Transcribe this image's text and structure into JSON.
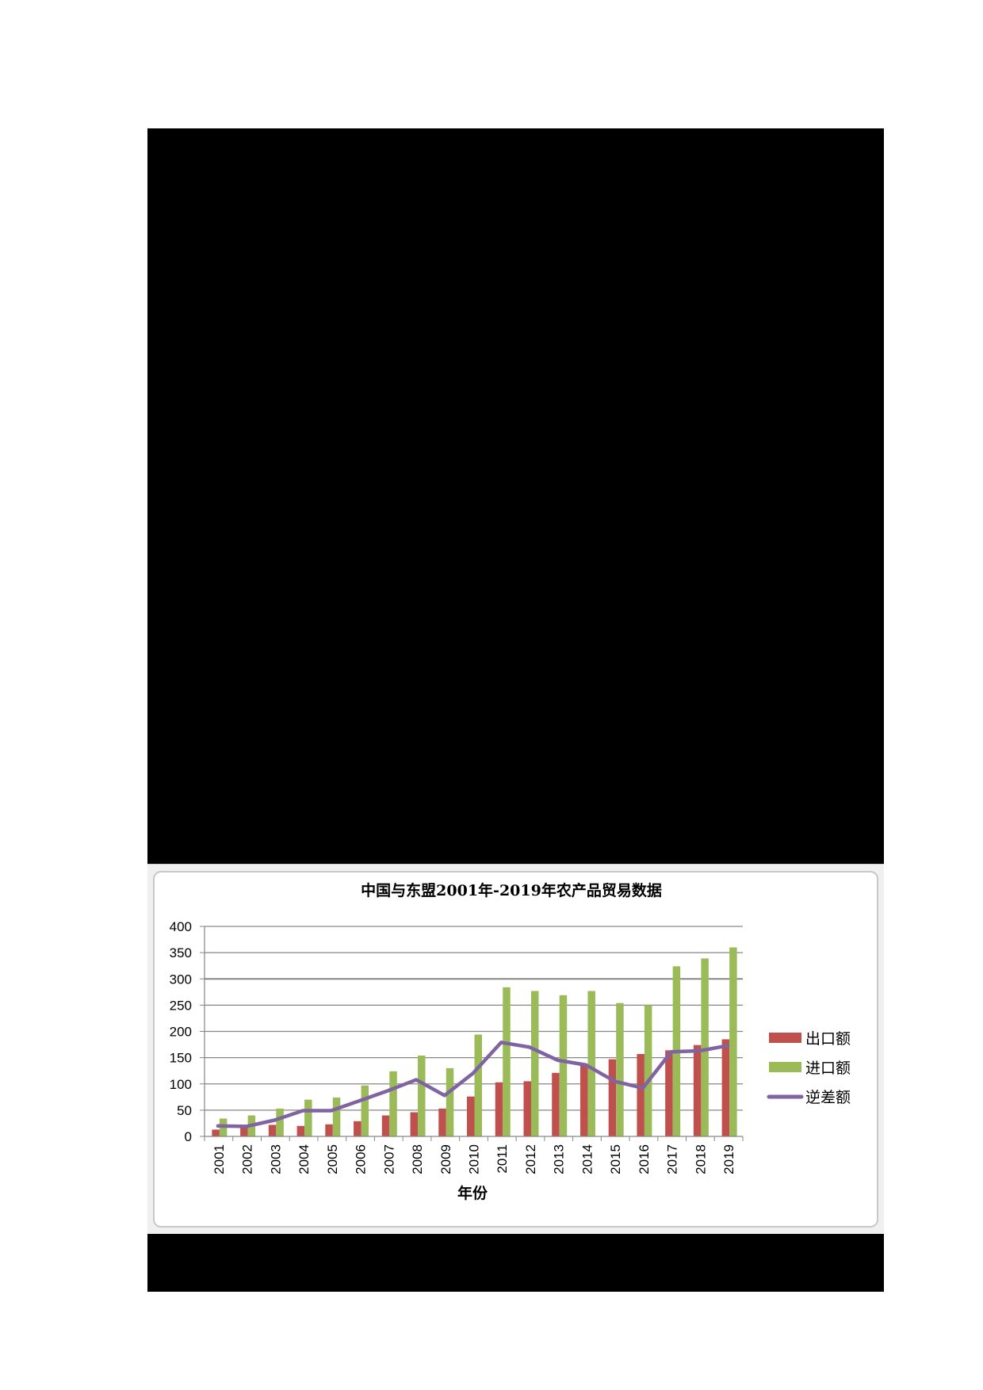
{
  "page": {
    "background": "#ffffff",
    "redacted_blocks": 2
  },
  "chart_data": {
    "type": "bar",
    "title": "中国与东盟2001年-2019年农产品贸易数据",
    "xlabel": "年份",
    "ylabel": "",
    "ylim": [
      0,
      400
    ],
    "yticks": [
      0,
      50,
      100,
      150,
      200,
      250,
      300,
      350,
      400
    ],
    "grid": true,
    "legend_position": "right",
    "categories": [
      "2001",
      "2002",
      "2003",
      "2004",
      "2005",
      "2006",
      "2007",
      "2008",
      "2009",
      "2010",
      "2011",
      "2012",
      "2013",
      "2014",
      "2015",
      "2016",
      "2017",
      "2018",
      "2019"
    ],
    "series": [
      {
        "name": "出口额",
        "type": "bar",
        "color": "#c0504d",
        "values": [
          13,
          20,
          22,
          20,
          23,
          29,
          40,
          46,
          53,
          76,
          103,
          105,
          121,
          136,
          147,
          157,
          164,
          174,
          185
        ]
      },
      {
        "name": "进口额",
        "type": "bar",
        "color": "#9bbb59",
        "values": [
          34,
          40,
          53,
          70,
          74,
          97,
          124,
          154,
          130,
          194,
          284,
          277,
          269,
          277,
          254,
          250,
          324,
          339,
          360
        ]
      },
      {
        "name": "逆差额",
        "type": "line",
        "color": "#8064a2",
        "values": [
          20,
          19,
          31,
          49,
          49,
          68,
          87,
          108,
          78,
          120,
          179,
          170,
          145,
          136,
          105,
          92,
          161,
          163,
          173
        ]
      }
    ]
  }
}
